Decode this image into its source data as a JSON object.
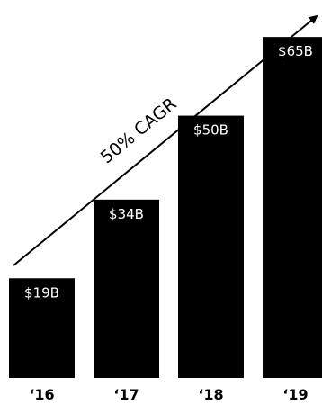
{
  "chart_data": {
    "type": "bar",
    "categories": [
      "‘16",
      "‘17",
      "‘18",
      "‘19"
    ],
    "values": [
      19,
      34,
      50,
      65
    ],
    "value_labels": [
      "$19B",
      "$34B",
      "$50B",
      "$65B"
    ],
    "ylim": [
      0,
      70
    ],
    "grid": false,
    "annotation": "50% CAGR",
    "bar_color": "#000000",
    "label_color": "#ffffff"
  }
}
